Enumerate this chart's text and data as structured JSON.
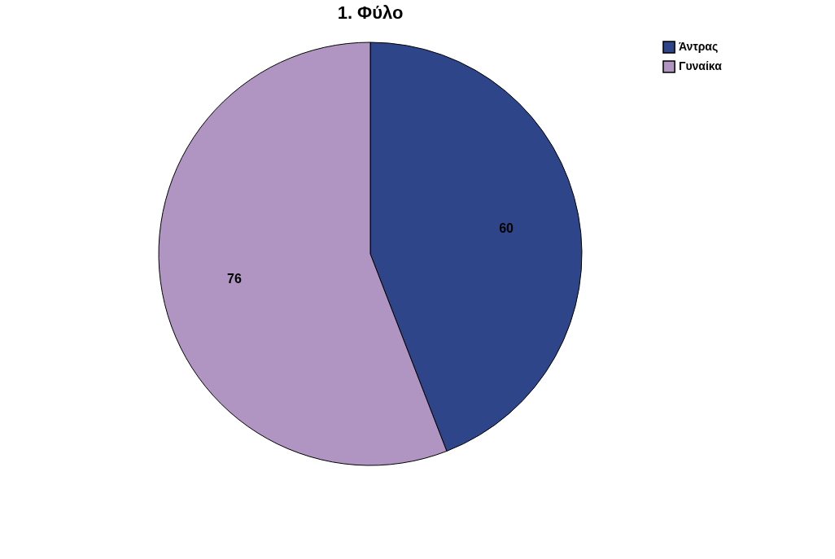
{
  "chart_data": {
    "type": "pie",
    "title": "1. Φύλο",
    "categories": [
      "Άντρας",
      "Γυναίκα"
    ],
    "values": [
      60,
      76
    ],
    "colors": [
      "#2e4589",
      "#b095c3"
    ],
    "data_labels": true,
    "legend": "top right"
  }
}
